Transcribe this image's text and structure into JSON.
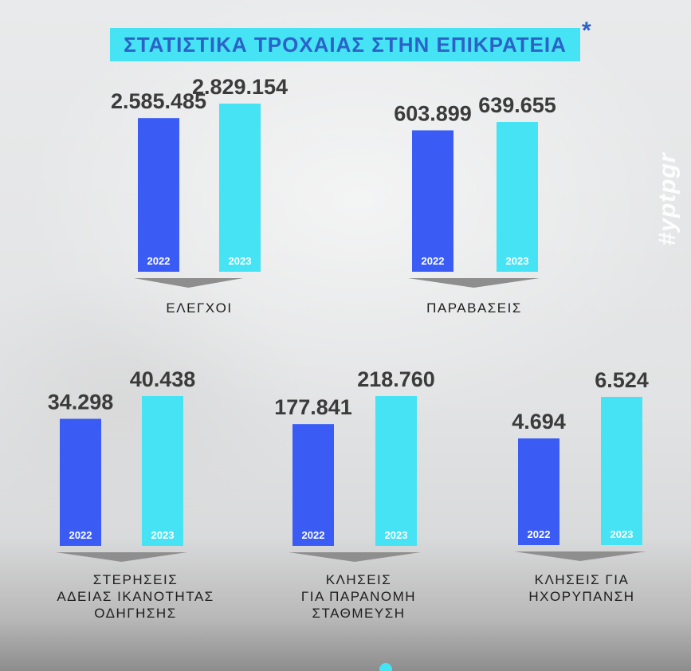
{
  "title": "ΣΤΑΤΙΣΤΙΚΑ ΤΡΟΧΑΙΑΣ ΣΤΗΝ ΕΠΙΚΡΑΤΕΙΑ",
  "title_mark": "*",
  "hashtag": "#yptpgr",
  "colors": {
    "bar_2022": "#3a5cf5",
    "bar_2023": "#45e3f4",
    "title_bg": "#45e3f4",
    "title_text": "#2c62c8",
    "value_text": "#3b3b3b"
  },
  "chart_data": [
    {
      "type": "bar",
      "title": "ΕΛΕΓΧΟΙ",
      "categories": [
        "2022",
        "2023"
      ],
      "values": [
        2585485,
        2829154
      ],
      "value_labels": [
        "2.585.485",
        "2.829.154"
      ]
    },
    {
      "type": "bar",
      "title": "ΠΑΡΑΒΑΣΕΙΣ",
      "categories": [
        "2022",
        "2023"
      ],
      "values": [
        603899,
        639655
      ],
      "value_labels": [
        "603.899",
        "639.655"
      ]
    },
    {
      "type": "bar",
      "title": "ΣΤΕΡΗΣΕΙΣ\nΑΔΕΙΑΣ ΙΚΑΝΟΤΗΤΑΣ\nΟΔΗΓΗΣΗΣ",
      "categories": [
        "2022",
        "2023"
      ],
      "values": [
        34298,
        40438
      ],
      "value_labels": [
        "34.298",
        "40.438"
      ]
    },
    {
      "type": "bar",
      "title": "ΚΛΗΣΕΙΣ\nΓΙΑ ΠΑΡΑΝΟΜΗ\nΣΤΑΘΜΕΥΣΗ",
      "categories": [
        "2022",
        "2023"
      ],
      "values": [
        177841,
        218760
      ],
      "value_labels": [
        "177.841",
        "218.760"
      ]
    },
    {
      "type": "bar",
      "title": "ΚΛΗΣΕΙΣ ΓΙΑ\nΗΧΟΡΥΠΑΝΣΗ",
      "categories": [
        "2022",
        "2023"
      ],
      "values": [
        4694,
        6524
      ],
      "value_labels": [
        "4.694",
        "6.524"
      ]
    }
  ]
}
